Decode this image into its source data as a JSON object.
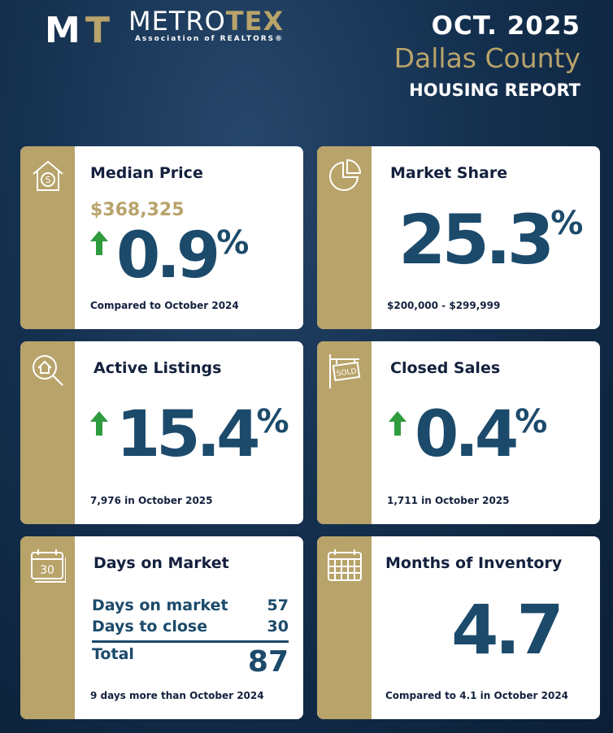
{
  "header": {
    "logo_letters": "MT",
    "brand_a": "METRO",
    "brand_b": "TEX",
    "brand_sub": "Association of REALTORS®",
    "date": "OCT. 2025",
    "county": "Dallas County",
    "report": "HOUSING REPORT"
  },
  "colors": {
    "gold": "#b8a36a",
    "navy": "#14213d",
    "blue": "#1c4a6b",
    "up_arrow": "#2e9b3e"
  },
  "median_price": {
    "title": "Median Price",
    "icon": "house-dollar-icon",
    "price": "$368,325",
    "change": "0.9",
    "unit": "%",
    "direction": "up",
    "footer": "Compared to October 2024"
  },
  "market_share": {
    "title": "Market Share",
    "icon": "pie-chart-icon",
    "value": "25.3",
    "unit": "%",
    "footer": "$200,000 - $299,999"
  },
  "active_listings": {
    "title": "Active Listings",
    "icon": "house-search-icon",
    "change": "15.4",
    "unit": "%",
    "direction": "up",
    "footer": "7,976 in October 2025"
  },
  "closed_sales": {
    "title": "Closed Sales",
    "icon": "sold-sign-icon",
    "sign_text": "SOLD",
    "change": "0.4",
    "unit": "%",
    "direction": "up",
    "footer": "1,711 in October 2025"
  },
  "days_on_market": {
    "title": "Days on Market",
    "icon": "calendar-30-icon",
    "icon_text": "30",
    "rows": [
      {
        "label": "Days on market",
        "value": "57"
      },
      {
        "label": "Days to close",
        "value": "30"
      }
    ],
    "total_label": "Total",
    "total_value": "87",
    "footer": "9 days more than October 2024"
  },
  "months_inventory": {
    "title": "Months of Inventory",
    "icon": "calendar-grid-icon",
    "value": "4.7",
    "footer": "Compared to 4.1 in October 2024"
  }
}
